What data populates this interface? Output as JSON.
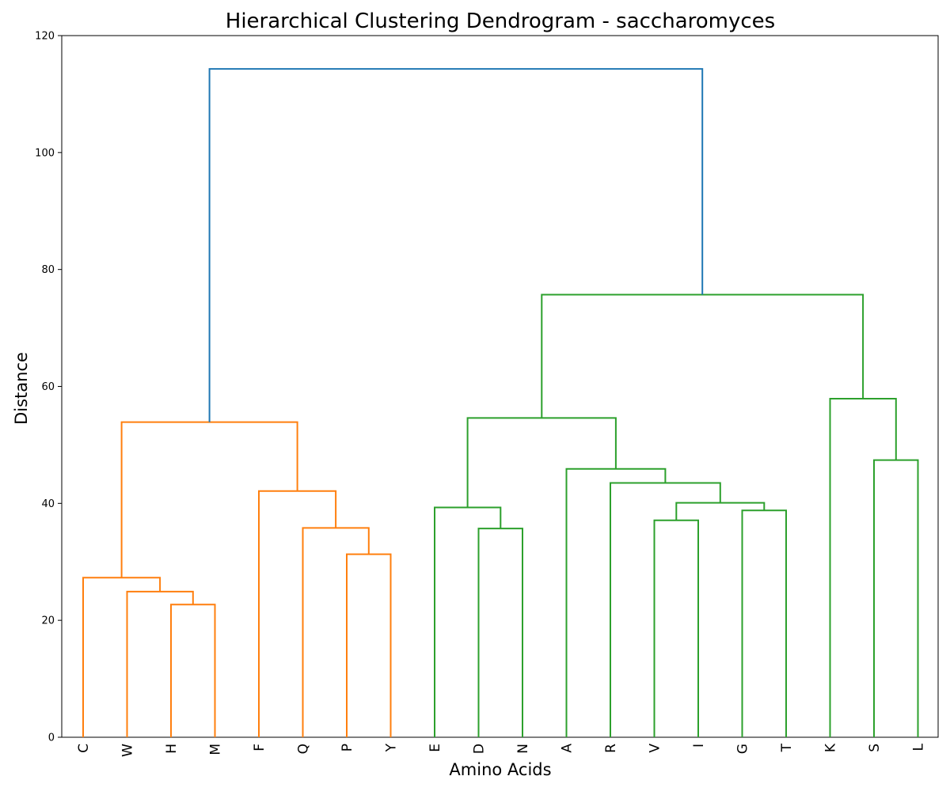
{
  "chart_data": {
    "type": "dendrogram",
    "title": "Hierarchical Clustering Dendrogram - saccharomyces",
    "xlabel": "Amino Acids",
    "ylabel": "Distance",
    "ylim": [
      0,
      120
    ],
    "yticks": [
      0,
      20,
      40,
      60,
      80,
      100,
      120
    ],
    "grid": false,
    "leaves": [
      "C",
      "W",
      "H",
      "M",
      "F",
      "Q",
      "P",
      "Y",
      "E",
      "D",
      "N",
      "A",
      "R",
      "V",
      "I",
      "G",
      "T",
      "K",
      "S",
      "L"
    ],
    "colors": {
      "orange": "#ff7f0e",
      "green": "#2ca02c",
      "blue": "#1f77b4"
    },
    "merges": [
      {
        "left": "H",
        "right": "M",
        "distance": 22.7,
        "color": "orange"
      },
      {
        "left": "W",
        "right": "H+M",
        "distance": 24.9,
        "color": "orange"
      },
      {
        "left": "C",
        "right": "W+H+M",
        "distance": 27.3,
        "color": "orange"
      },
      {
        "left": "P",
        "right": "Y",
        "distance": 31.3,
        "color": "orange"
      },
      {
        "left": "Q",
        "right": "P+Y",
        "distance": 35.8,
        "color": "orange"
      },
      {
        "left": "F",
        "right": "Q+P+Y",
        "distance": 42.1,
        "color": "orange"
      },
      {
        "left": "C+W+H+M",
        "right": "F+Q+P+Y",
        "distance": 53.9,
        "color": "orange"
      },
      {
        "left": "D",
        "right": "N",
        "distance": 35.7,
        "color": "green"
      },
      {
        "left": "E",
        "right": "D+N",
        "distance": 39.3,
        "color": "green"
      },
      {
        "left": "V",
        "right": "I",
        "distance": 37.1,
        "color": "green"
      },
      {
        "left": "G",
        "right": "T",
        "distance": 38.8,
        "color": "green"
      },
      {
        "left": "V+I",
        "right": "G+T",
        "distance": 40.1,
        "color": "green"
      },
      {
        "left": "R",
        "right": "V+I+G+T",
        "distance": 43.5,
        "color": "green"
      },
      {
        "left": "A",
        "right": "R+V+I+G+T",
        "distance": 45.9,
        "color": "green"
      },
      {
        "left": "E+D+N",
        "right": "A+R+V+I+G+T",
        "distance": 54.6,
        "color": "green"
      },
      {
        "left": "S",
        "right": "L",
        "distance": 47.4,
        "color": "green"
      },
      {
        "left": "K",
        "right": "S+L",
        "distance": 57.9,
        "color": "green"
      },
      {
        "left": "E+D+N+A+R+V+I+G+T",
        "right": "K+S+L",
        "distance": 75.7,
        "color": "green"
      },
      {
        "left": "C+W+H+M+F+Q+P+Y",
        "right": "E+D+N+A+R+V+I+G+T+K+S+L",
        "distance": 114.3,
        "color": "blue"
      }
    ]
  }
}
